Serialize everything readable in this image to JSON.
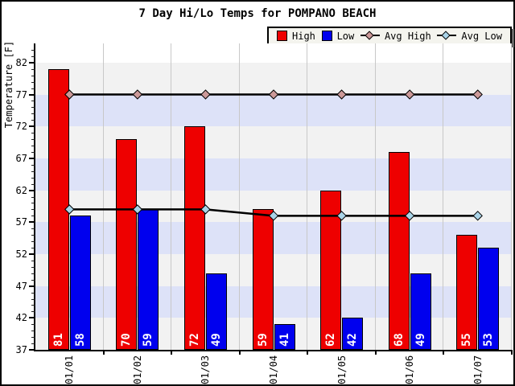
{
  "title": "7 Day Hi/Lo Temps for POMPANO BEACH",
  "y_axis_label": "Temperature [F]",
  "legend": {
    "items": [
      {
        "label": "High",
        "swatch": "box",
        "color": "#ee0000"
      },
      {
        "label": "Low",
        "swatch": "box",
        "color": "#0000ee"
      },
      {
        "label": "Avg High",
        "swatch": "line-diamond",
        "color": "#cc9999"
      },
      {
        "label": "Avg Low",
        "swatch": "line-diamond",
        "color": "#aad4e8"
      }
    ]
  },
  "chart_data": {
    "type": "bar",
    "title": "7 Day Hi/Lo Temps for POMPANO BEACH",
    "xlabel": "",
    "ylabel": "Temperature [F]",
    "categories": [
      "01/01",
      "01/02",
      "01/03",
      "01/04",
      "01/05",
      "01/06",
      "01/07"
    ],
    "series": [
      {
        "name": "High",
        "type": "bar",
        "color": "#ee0000",
        "values": [
          81,
          70,
          72,
          59,
          62,
          68,
          55
        ]
      },
      {
        "name": "Low",
        "type": "bar",
        "color": "#0000ee",
        "values": [
          58,
          59,
          49,
          41,
          42,
          49,
          53
        ]
      },
      {
        "name": "Avg High",
        "type": "line",
        "line_color": "#000000",
        "marker": "diamond",
        "marker_color": "#cc9999",
        "values": [
          77,
          77,
          77,
          77,
          77,
          77,
          77
        ]
      },
      {
        "name": "Avg Low",
        "type": "line",
        "line_color": "#000000",
        "marker": "diamond",
        "marker_color": "#aad4e8",
        "values": [
          59,
          59,
          59,
          58,
          58,
          58,
          58
        ]
      }
    ],
    "ylim": [
      37,
      85
    ],
    "yticks": [
      37,
      42,
      47,
      52,
      57,
      62,
      67,
      72,
      77,
      82
    ],
    "bar_value_labels": true,
    "grid": "vertical",
    "legend_position": "top-right",
    "bands": {
      "blue_color": "#dde2f8",
      "gray_color": "#f2f2f2",
      "blue": [
        [
          72,
          77
        ],
        [
          62,
          67
        ],
        [
          52,
          57
        ],
        [
          42,
          47
        ]
      ],
      "gray": [
        [
          77,
          82
        ],
        [
          67,
          72
        ],
        [
          57,
          62
        ],
        [
          47,
          52
        ],
        [
          37,
          42
        ]
      ]
    }
  },
  "colors": {
    "background": "#ffffff",
    "frame_border": "#000000",
    "gridline": "#c8c8c8",
    "legend_bg": "#f4f4ee",
    "legend_shadow": "#666666"
  }
}
